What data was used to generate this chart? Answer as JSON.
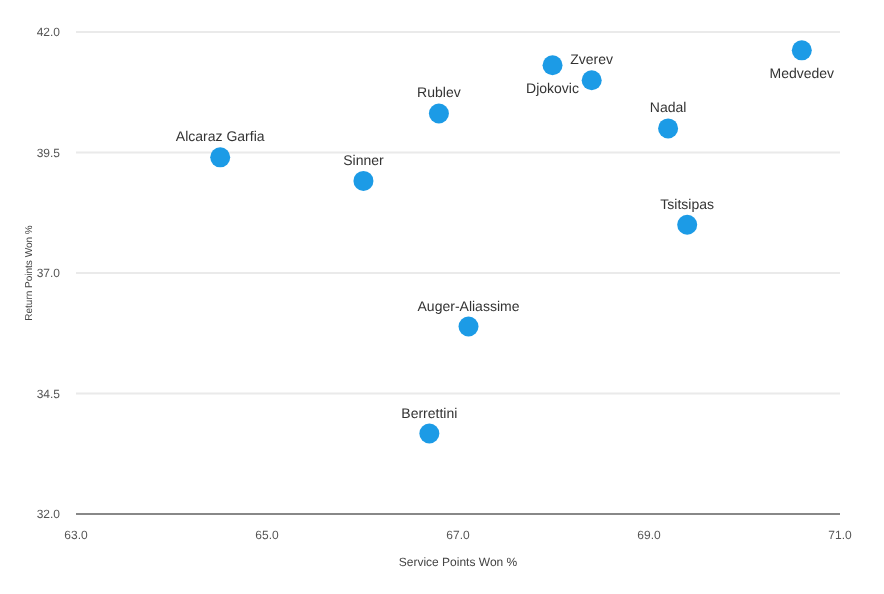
{
  "chart_data": {
    "type": "scatter",
    "xlabel": "Service Points Won %",
    "ylabel": "Return Points Won %",
    "x": [
      64.51,
      66.01,
      66.8,
      67.99,
      68.4,
      69.2,
      69.4,
      70.6,
      67.11,
      66.7
    ],
    "series": [
      {
        "color": "#1c9be6",
        "values": [
          39.4,
          38.91,
          40.31,
          41.31,
          41.0,
          40.0,
          38.0,
          41.62,
          35.89,
          33.67
        ]
      }
    ],
    "value_labels": [
      "Alcaraz Garfia",
      "Sinner",
      "Rublev",
      "Djokovic",
      "Zverev",
      "Nadal",
      "Tsitsipas",
      "Medvedev",
      "Auger-Aliassime",
      "Berrettini"
    ],
    "xlim": [
      63,
      71
    ],
    "xticks": [
      {
        "value": 63,
        "label": "63.0"
      },
      {
        "value": 65,
        "label": "65.0"
      },
      {
        "value": 67,
        "label": "67.0"
      },
      {
        "value": 69,
        "label": "69.0"
      },
      {
        "value": 71,
        "label": "71.0"
      }
    ],
    "ylim": [
      32,
      42
    ],
    "yticks": [
      {
        "value": 32,
        "label": "32.0"
      },
      {
        "value": 34.5,
        "label": "34.5"
      },
      {
        "value": 37,
        "label": "37.0"
      },
      {
        "value": 39.5,
        "label": "39.5"
      },
      {
        "value": 42,
        "label": "42.0"
      }
    ],
    "grid": "y",
    "marker": "circle"
  }
}
